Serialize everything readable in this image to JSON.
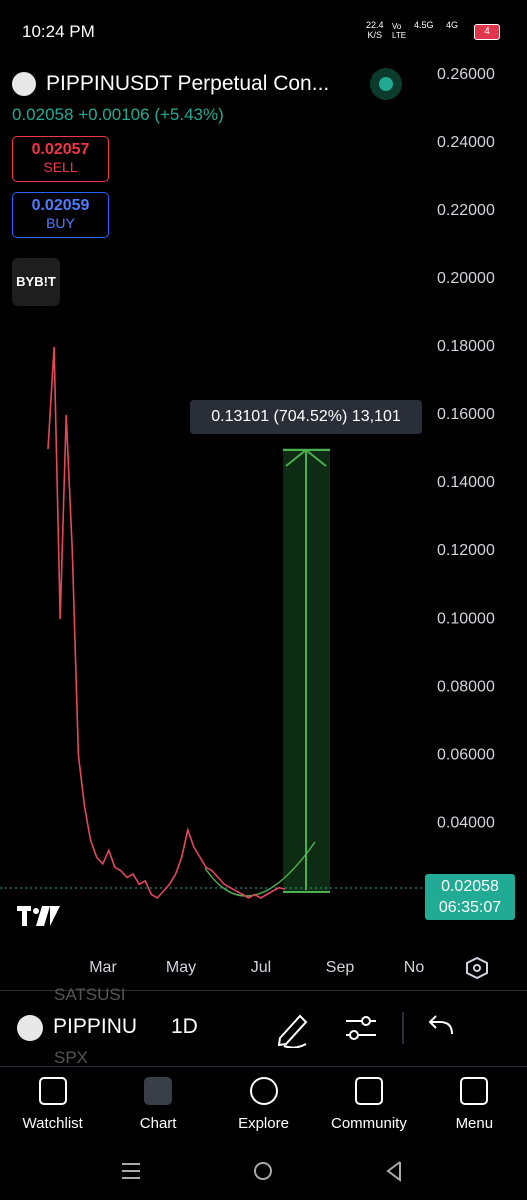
{
  "status_bar": {
    "time": "10:24 PM",
    "speed": "22.4",
    "speed_unit": "K/S",
    "volte": "Vo LTE",
    "net1": "4.5G",
    "net2": "4G",
    "battery": "4"
  },
  "header": {
    "symbol": "PIPPINUSDT Perpetual Con...",
    "price": "0.02058",
    "change": "+0.00106",
    "change_pct": "(+5.43%)"
  },
  "trade": {
    "sell_price": "0.02057",
    "sell_label": "SELL",
    "buy_price": "0.02059",
    "buy_label": "BUY"
  },
  "broker_logo": "BYB!T",
  "chart_data": {
    "type": "line",
    "color": "#e5485d",
    "values": [
      0.15,
      0.18,
      0.1,
      0.16,
      0.12,
      0.06,
      0.045,
      0.035,
      0.03,
      0.028,
      0.032,
      0.027,
      0.026,
      0.024,
      0.025,
      0.022,
      0.023,
      0.019,
      0.018,
      0.02,
      0.022,
      0.025,
      0.03,
      0.038,
      0.033,
      0.03,
      0.027,
      0.026,
      0.024,
      0.022,
      0.021,
      0.02,
      0.019,
      0.018,
      0.019,
      0.018,
      0.019,
      0.02,
      0.021,
      0.02058
    ],
    "ylim": [
      0.0012,
      0.2644
    ],
    "yticks": [
      {
        "value": 0.04,
        "label": "0.04000"
      },
      {
        "value": 0.06,
        "label": "0.06000"
      },
      {
        "value": 0.08,
        "label": "0.08000"
      },
      {
        "value": 0.1,
        "label": "0.10000"
      },
      {
        "value": 0.12,
        "label": "0.12000"
      },
      {
        "value": 0.14,
        "label": "0.14000"
      },
      {
        "value": 0.16,
        "label": "0.16000"
      },
      {
        "value": 0.18,
        "label": "0.18000"
      },
      {
        "value": 0.2,
        "label": "0.20000"
      },
      {
        "value": 0.22,
        "label": "0.22000"
      },
      {
        "value": 0.24,
        "label": "0.24000"
      },
      {
        "value": 0.26,
        "label": "0.26000"
      }
    ],
    "x_axis_labels": [
      "Mar",
      "May",
      "Jul",
      "Sep",
      "No"
    ]
  },
  "measure": {
    "label": "0.13101 (704.52%) 13,101"
  },
  "price_tag": {
    "price": "0.02058",
    "countdown": "06:35:07"
  },
  "toolbar": {
    "symbol": "PIPPINU",
    "interval": "1D",
    "ghost_above": "SATSUSI",
    "ghost_below": "SPX"
  },
  "tabs": [
    "Watchlist",
    "Chart",
    "Explore",
    "Community",
    "Menu"
  ]
}
